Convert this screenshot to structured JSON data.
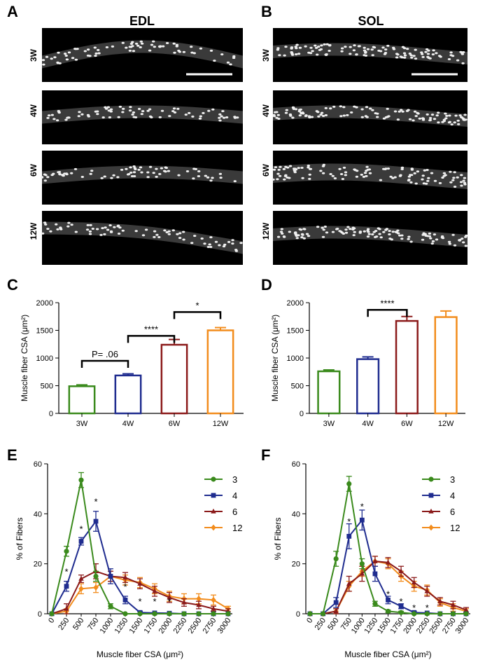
{
  "panel_labels": [
    "A",
    "B",
    "C",
    "D",
    "E",
    "F"
  ],
  "micrograph_titles": [
    "EDL",
    "SOL"
  ],
  "micrograph_rows": [
    "3W",
    "4W",
    "6W",
    "12W"
  ],
  "colors": {
    "3W": "#3a8a1c",
    "4W": "#1f2c8f",
    "6W": "#8b1a1a",
    "12W": "#f28c1c"
  },
  "chart_data": [
    {
      "id": "C",
      "type": "bar",
      "categories": [
        "3W",
        "4W",
        "6W",
        "12W"
      ],
      "values": [
        490,
        685,
        1240,
        1500
      ],
      "errors": [
        25,
        30,
        95,
        50
      ],
      "ylabel": "Muscle fiber CSA (μm²)",
      "ylim": [
        0,
        2000
      ],
      "yticks": [
        0,
        500,
        1000,
        1500,
        2000
      ],
      "annotations": [
        {
          "from": 0,
          "to": 1,
          "label": "P= .06",
          "y": 950
        },
        {
          "from": 1,
          "to": 2,
          "label": "****",
          "y": 1400
        },
        {
          "from": 2,
          "to": 3,
          "label": "*",
          "y": 1830
        }
      ]
    },
    {
      "id": "D",
      "type": "bar",
      "categories": [
        "3W",
        "4W",
        "6W",
        "12W"
      ],
      "values": [
        760,
        980,
        1670,
        1740
      ],
      "errors": [
        25,
        40,
        80,
        110
      ],
      "ylabel": "Muscle fiber CSA (μm²)",
      "ylim": [
        0,
        2000
      ],
      "yticks": [
        0,
        500,
        1000,
        1500,
        2000
      ],
      "annotations": [
        {
          "from": 1,
          "to": 2,
          "label": "****",
          "y": 1870
        }
      ]
    },
    {
      "id": "E",
      "type": "line",
      "x": [
        0,
        250,
        500,
        750,
        1000,
        1250,
        1500,
        1750,
        2000,
        2250,
        2500,
        2750,
        3000
      ],
      "xlabel": "Muscle fiber CSA (μm²)",
      "ylabel": "% of Fibers",
      "ylim": [
        0,
        60
      ],
      "yticks": [
        0,
        20,
        40,
        60
      ],
      "series": [
        {
          "name": "3",
          "values": [
            0,
            25,
            53.5,
            15,
            3,
            0,
            0,
            0,
            0,
            0,
            0,
            0,
            0
          ],
          "errors": [
            0,
            2,
            3,
            2,
            1,
            0,
            0,
            0,
            0,
            0,
            0,
            0,
            0
          ]
        },
        {
          "name": "4",
          "values": [
            0,
            11,
            29,
            37,
            15,
            5.5,
            0.5,
            0.3,
            0.2,
            0,
            0,
            0,
            0
          ],
          "errors": [
            0,
            2,
            1.5,
            4,
            3,
            1.5,
            0.5,
            0,
            0,
            0,
            0,
            0,
            0
          ]
        },
        {
          "name": "6",
          "values": [
            0,
            2,
            14,
            17,
            15,
            14.5,
            12,
            9,
            6.5,
            4.5,
            3.5,
            2,
            1
          ],
          "errors": [
            0,
            2,
            1.5,
            3,
            2,
            2,
            2,
            2,
            2,
            1.5,
            1.5,
            1,
            1
          ]
        },
        {
          "name": "12",
          "values": [
            0,
            1,
            10,
            10.5,
            15,
            13.5,
            12.5,
            10,
            7,
            6,
            6,
            5.5,
            2
          ],
          "errors": [
            0,
            1,
            2,
            2,
            2,
            2,
            2,
            2,
            2,
            2,
            2,
            2,
            1
          ]
        }
      ],
      "stars": [
        {
          "x": 250,
          "y": 17
        },
        {
          "x": 500,
          "y": 34
        },
        {
          "x": 750,
          "y": 45
        },
        {
          "x": 1250,
          "y": 11
        },
        {
          "x": 1500,
          "y": 5
        },
        {
          "x": 1750,
          "y": 5
        },
        {
          "x": 2000,
          "y": 5
        }
      ],
      "star_label": "*"
    },
    {
      "id": "F",
      "type": "line",
      "x": [
        0,
        250,
        500,
        750,
        1000,
        1250,
        1500,
        1750,
        2000,
        2250,
        2500,
        2750,
        3000
      ],
      "xlabel": "Muscle fiber CSA (μm²)",
      "ylabel": "% of Fibers",
      "ylim": [
        0,
        60
      ],
      "yticks": [
        0,
        20,
        40,
        60
      ],
      "series": [
        {
          "name": "3",
          "values": [
            0,
            0,
            22,
            52,
            20,
            4,
            1,
            0.5,
            0,
            0,
            0,
            0,
            0
          ],
          "errors": [
            0,
            0,
            3,
            3,
            2,
            1,
            0.5,
            0.5,
            0,
            0,
            0,
            0,
            0
          ]
        },
        {
          "name": "4",
          "values": [
            0,
            0,
            4.5,
            31,
            37.5,
            16,
            5.5,
            3,
            0.5,
            0.3,
            0,
            0,
            0
          ],
          "errors": [
            0,
            0,
            2,
            5,
            4,
            3,
            1.5,
            1,
            0.5,
            0,
            0,
            0,
            0
          ]
        },
        {
          "name": "6",
          "values": [
            0,
            0,
            1,
            12,
            16,
            21,
            20.5,
            17,
            12.5,
            9,
            5,
            3.5,
            1.5
          ],
          "errors": [
            0,
            0,
            1,
            3,
            3,
            2,
            2,
            2,
            2,
            2,
            1.5,
            1.5,
            1
          ]
        },
        {
          "name": "12",
          "values": [
            0,
            0,
            1,
            11,
            17,
            21,
            20,
            15,
            11,
            9.5,
            4.5,
            2.5,
            1
          ],
          "errors": [
            0,
            0,
            1,
            2,
            2,
            2,
            2,
            2,
            2,
            2,
            1.5,
            1.5,
            1
          ]
        }
      ],
      "stars": [
        {
          "x": 750,
          "y": 37
        },
        {
          "x": 1000,
          "y": 43
        },
        {
          "x": 1500,
          "y": 8
        },
        {
          "x": 1750,
          "y": 5
        },
        {
          "x": 2000,
          "y": 2.5
        },
        {
          "x": 2250,
          "y": 2.5
        }
      ],
      "star_label": "*"
    }
  ]
}
